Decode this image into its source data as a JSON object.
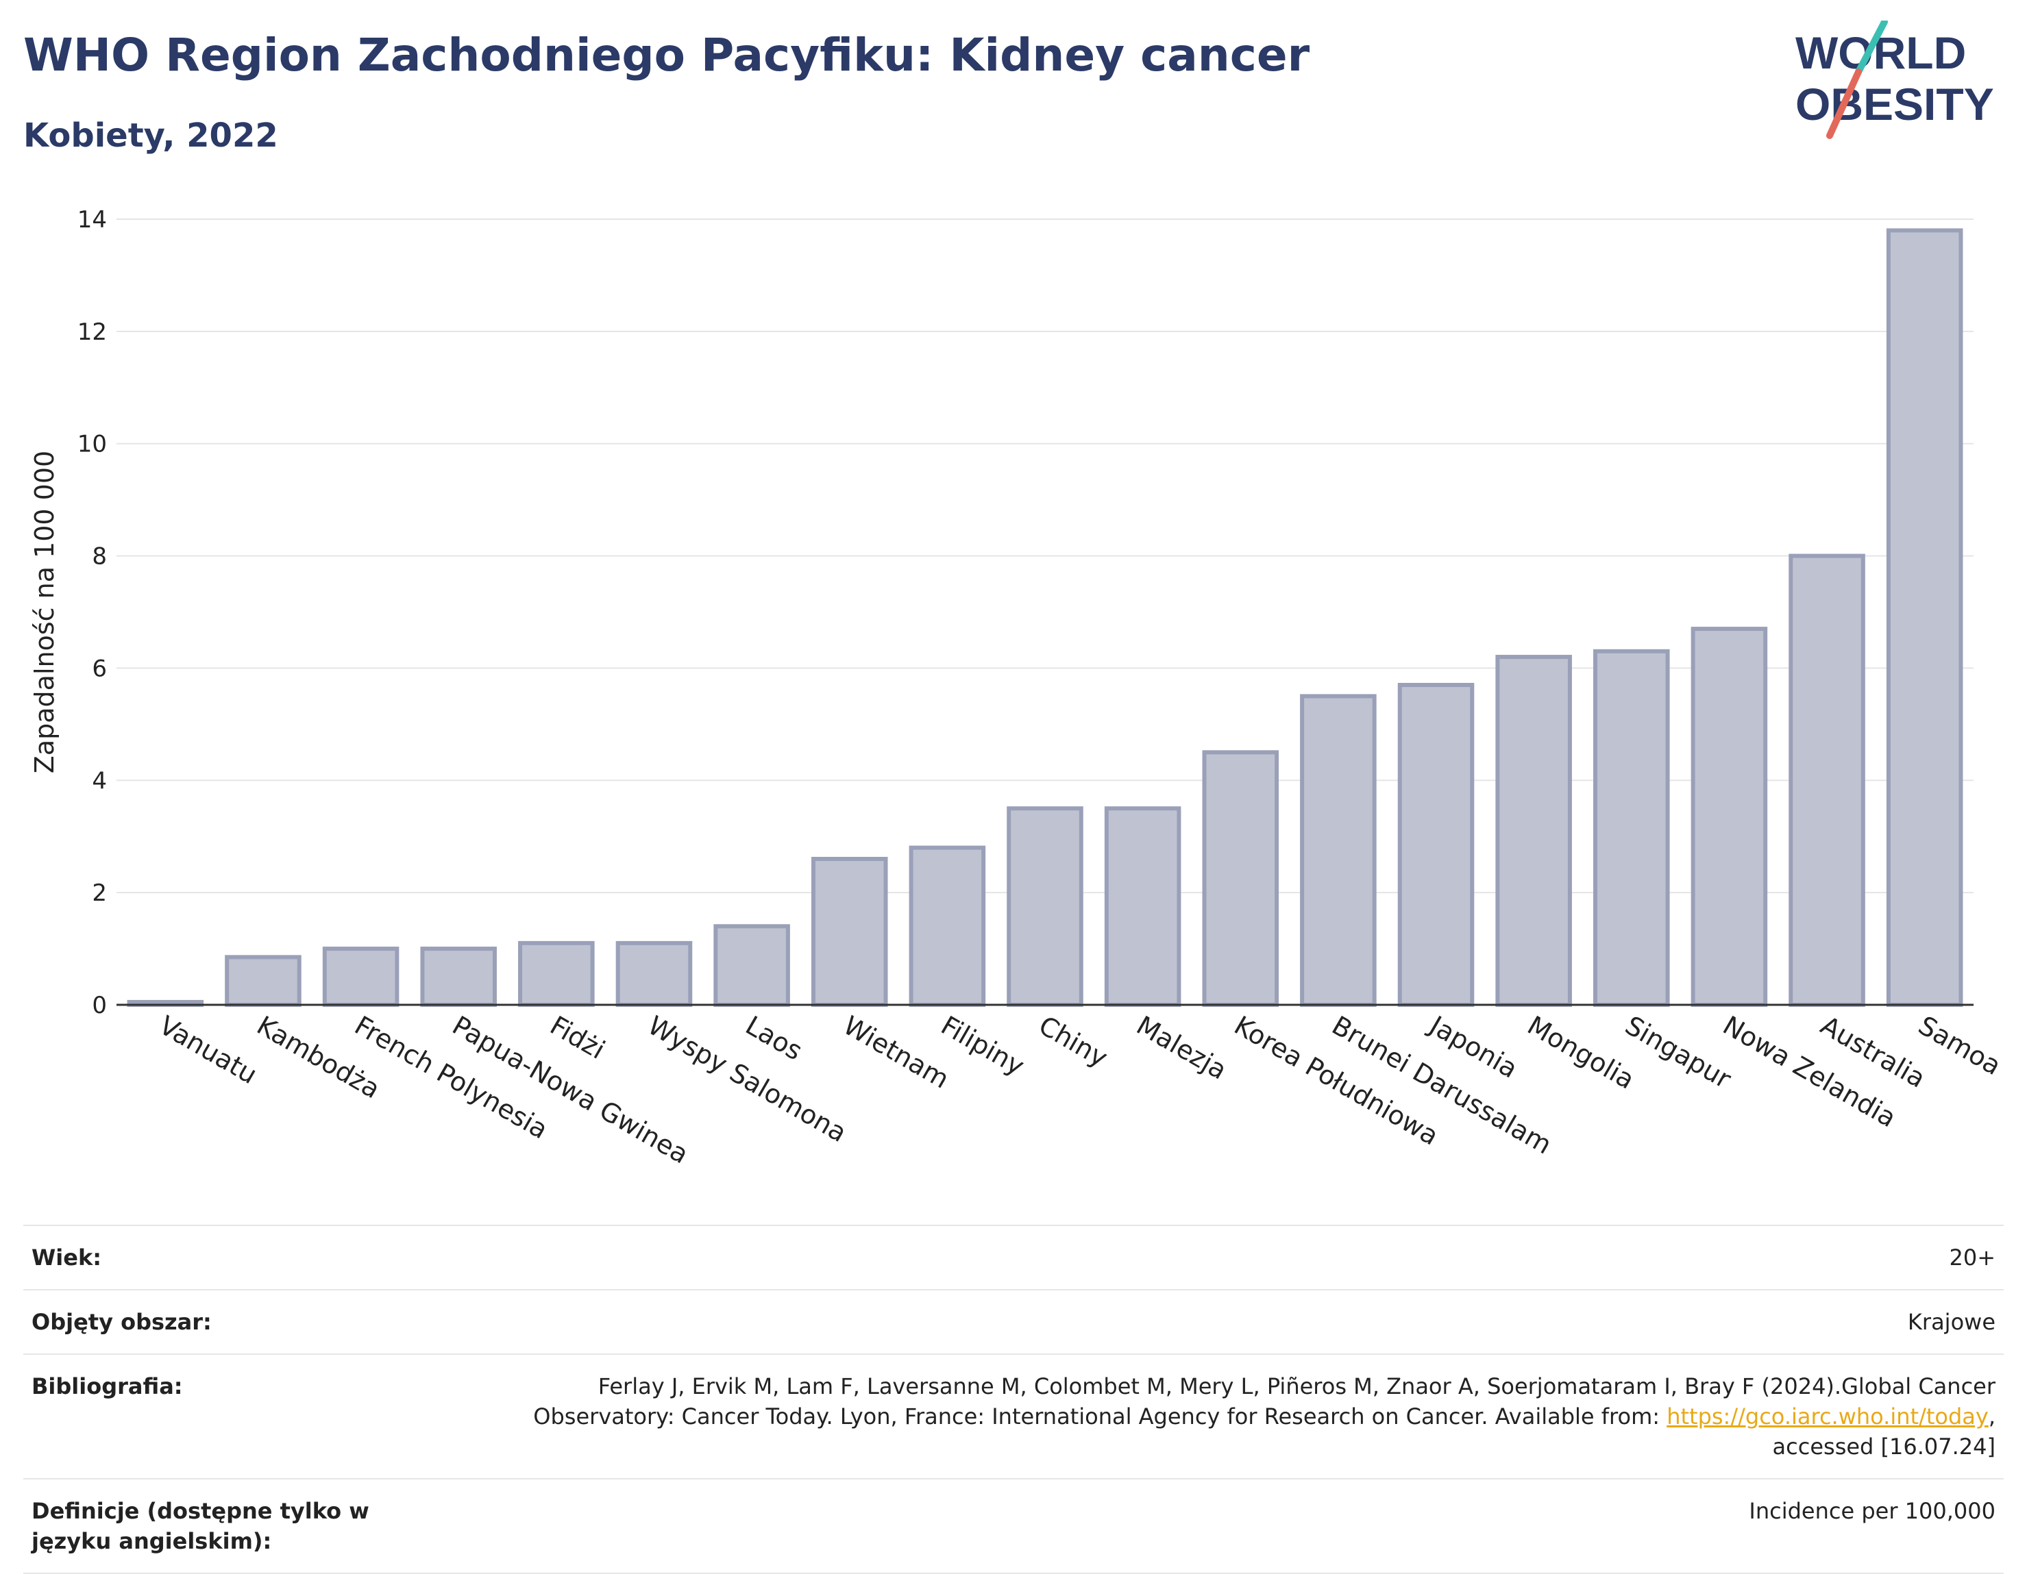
{
  "header": {
    "title": "WHO Region Zachodniego Pacyfiku: Kidney cancer",
    "subtitle": "Kobiety, 2022"
  },
  "logo": {
    "line1": "WORLD",
    "line2": "OBESITY",
    "colors": {
      "text": "#2b3a67",
      "accent_teal": "#3bbfb3",
      "accent_red": "#e2685a"
    }
  },
  "chart_data": {
    "type": "bar",
    "title": "",
    "xlabel": "",
    "ylabel": "Zapadalność na 100 000",
    "ylim": [
      0,
      14
    ],
    "yticks": [
      0,
      2,
      4,
      6,
      8,
      10,
      12,
      14
    ],
    "grid": true,
    "bar_color": "#bfc3d1",
    "bar_border_color": "#9aa0b8",
    "categories": [
      "Vanuatu",
      "Kambodża",
      "French Polynesia",
      "Papua-Nowa Gwinea",
      "Fidżi",
      "Wyspy Salomona",
      "Laos",
      "Wietnam",
      "Filipiny",
      "Chiny",
      "Malezja",
      "Korea Południowa",
      "Brunei Darussalam",
      "Japonia",
      "Mongolia",
      "Singapur",
      "Nowa Zelandia",
      "Australia",
      "Samoa"
    ],
    "values": [
      0.05,
      0.85,
      1.0,
      1.0,
      1.1,
      1.1,
      1.4,
      2.6,
      2.8,
      3.5,
      3.5,
      4.5,
      5.5,
      5.7,
      6.2,
      6.3,
      6.7,
      8.0,
      13.8
    ]
  },
  "meta": {
    "age_label": "Wiek:",
    "age_value": "20+",
    "coverage_label": "Objęty obszar:",
    "coverage_value": "Krajowe",
    "bibliography_label": "Bibliografia:",
    "bibliography_text_1": "Ferlay J, Ervik M, Lam F, Laversanne M, Colombet M, Mery L, Piñeros M, Znaor A, Soerjomataram I, Bray F (2024).Global Cancer Observatory: Cancer Today. Lyon, France: International Agency for Research on Cancer. Available from: ",
    "bibliography_link": "https://gco.iarc.who.int/today",
    "bibliography_text_2": ", accessed [16.07.24]",
    "definitions_label": "Definicje (dostępne tylko w języku angielskim):",
    "definitions_value": "Incidence per 100,000"
  }
}
